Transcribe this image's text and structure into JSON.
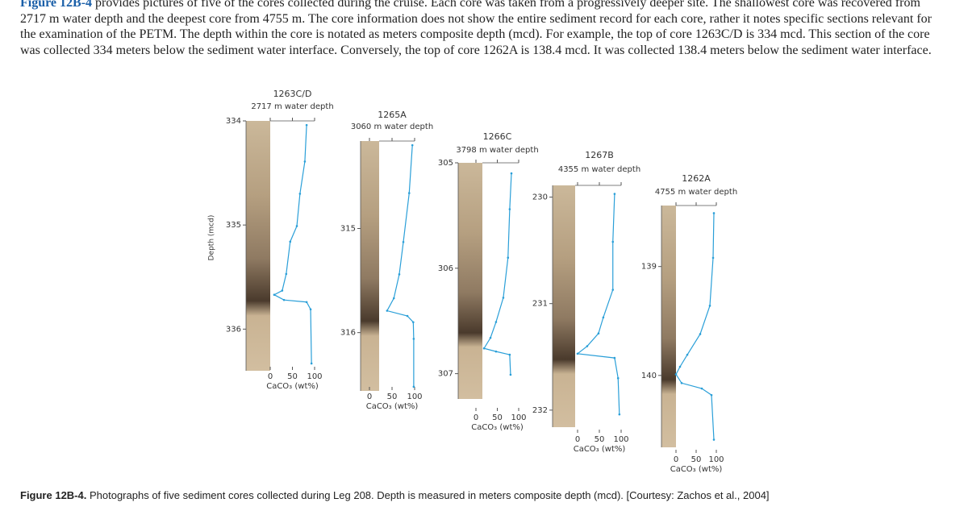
{
  "paragraph": {
    "link": "Figure 12B-4",
    "text": "provides pictures of five of the cores collected during the cruise. Each core was taken from a progressively deeper site. The shallowest core was recovered from 2717 m water depth and the deepest core from 4755 m. The core information does not show the entire sediment record for each core, rather it notes specific sections relevant for the examination of the PETM. The depth within the core is notated as meters composite depth (mcd). For example, the top of core 1263C/D is 334 mcd. This section of the core was collected 334 meters below the sediment water interface. Conversely, the top of core 1262A is 138.4 mcd. It was collected 138.4 meters below the sediment water interface."
  },
  "figure": {
    "ylabel": "Depth (mcd)",
    "cores": [
      {
        "name": "1263C/D",
        "water_depth": "2717 m water depth",
        "ylim": [
          334,
          336.4
        ],
        "yticks": [
          334,
          335,
          336
        ],
        "xlim": [
          0,
          100
        ],
        "xticks": [
          0,
          50,
          100
        ],
        "xlabel": "CaCO₃ (wt%)",
        "depth": [
          334.04,
          334.39,
          334.7,
          335.01,
          335.16,
          335.47,
          335.63,
          335.67,
          335.72,
          335.74,
          335.81,
          336.33
        ],
        "caco3": [
          82,
          78,
          67,
          60,
          45,
          36,
          27,
          9,
          31,
          82,
          91,
          93
        ]
      },
      {
        "name": "1265A",
        "water_depth": "3060 m water depth",
        "ylim": [
          314.16,
          316.56
        ],
        "yticks": [
          315,
          316
        ],
        "xlim": [
          0,
          100
        ],
        "xticks": [
          0,
          50,
          100
        ],
        "xlabel": "CaCO₃ (wt%)",
        "depth": [
          314.2,
          314.66,
          315.13,
          315.44,
          315.67,
          315.79,
          315.84,
          315.9,
          316.06,
          316.52
        ],
        "caco3": [
          95,
          88,
          75,
          66,
          54,
          39,
          84,
          97,
          98,
          98
        ]
      },
      {
        "name": "1266C",
        "water_depth": "3798 m water depth",
        "ylim": [
          305,
          307.24
        ],
        "yticks": [
          305,
          306,
          307
        ],
        "xlim": [
          0,
          100
        ],
        "xticks": [
          0,
          50,
          100
        ],
        "xlabel": "CaCO₃ (wt%)",
        "depth": [
          305.1,
          305.44,
          305.9,
          306.28,
          306.51,
          306.66,
          306.76,
          306.79,
          306.82,
          307.01
        ],
        "caco3": [
          83,
          79,
          75,
          64,
          47,
          34,
          19,
          47,
          79,
          81
        ]
      },
      {
        "name": "1267B",
        "water_depth": "4355 m water depth",
        "ylim": [
          229.89,
          232.16
        ],
        "yticks": [
          230,
          231,
          232
        ],
        "xlim": [
          0,
          100
        ],
        "xticks": [
          0,
          50,
          100
        ],
        "xlabel": "CaCO₃ (wt%)",
        "depth": [
          229.97,
          230.42,
          230.87,
          231.13,
          231.28,
          231.4,
          231.47,
          231.51,
          231.7,
          232.04
        ],
        "caco3": [
          85,
          81,
          81,
          59,
          48,
          22,
          0,
          85,
          93,
          96
        ]
      },
      {
        "name": "1262A",
        "water_depth": "4755 m water depth",
        "ylim": [
          138.44,
          140.66
        ],
        "yticks": [
          139,
          140
        ],
        "xlim": [
          0,
          100
        ],
        "xticks": [
          0,
          50,
          100
        ],
        "xlabel": "CaCO₃ (wt%)",
        "depth": [
          138.51,
          138.92,
          139.36,
          139.62,
          139.81,
          139.92,
          139.99,
          140.07,
          140.12,
          140.18,
          140.59
        ],
        "caco3": [
          94,
          92,
          84,
          60,
          28,
          10,
          0,
          14,
          64,
          88,
          94
        ]
      }
    ],
    "line_color": "#2a9fd8"
  },
  "caption": {
    "label": "Figure 12B-4.",
    "text": "Photographs of five sediment cores collected during Leg 208. Depth is measured in meters composite depth (mcd). [Courtesy: Zachos et al., 2004]"
  }
}
